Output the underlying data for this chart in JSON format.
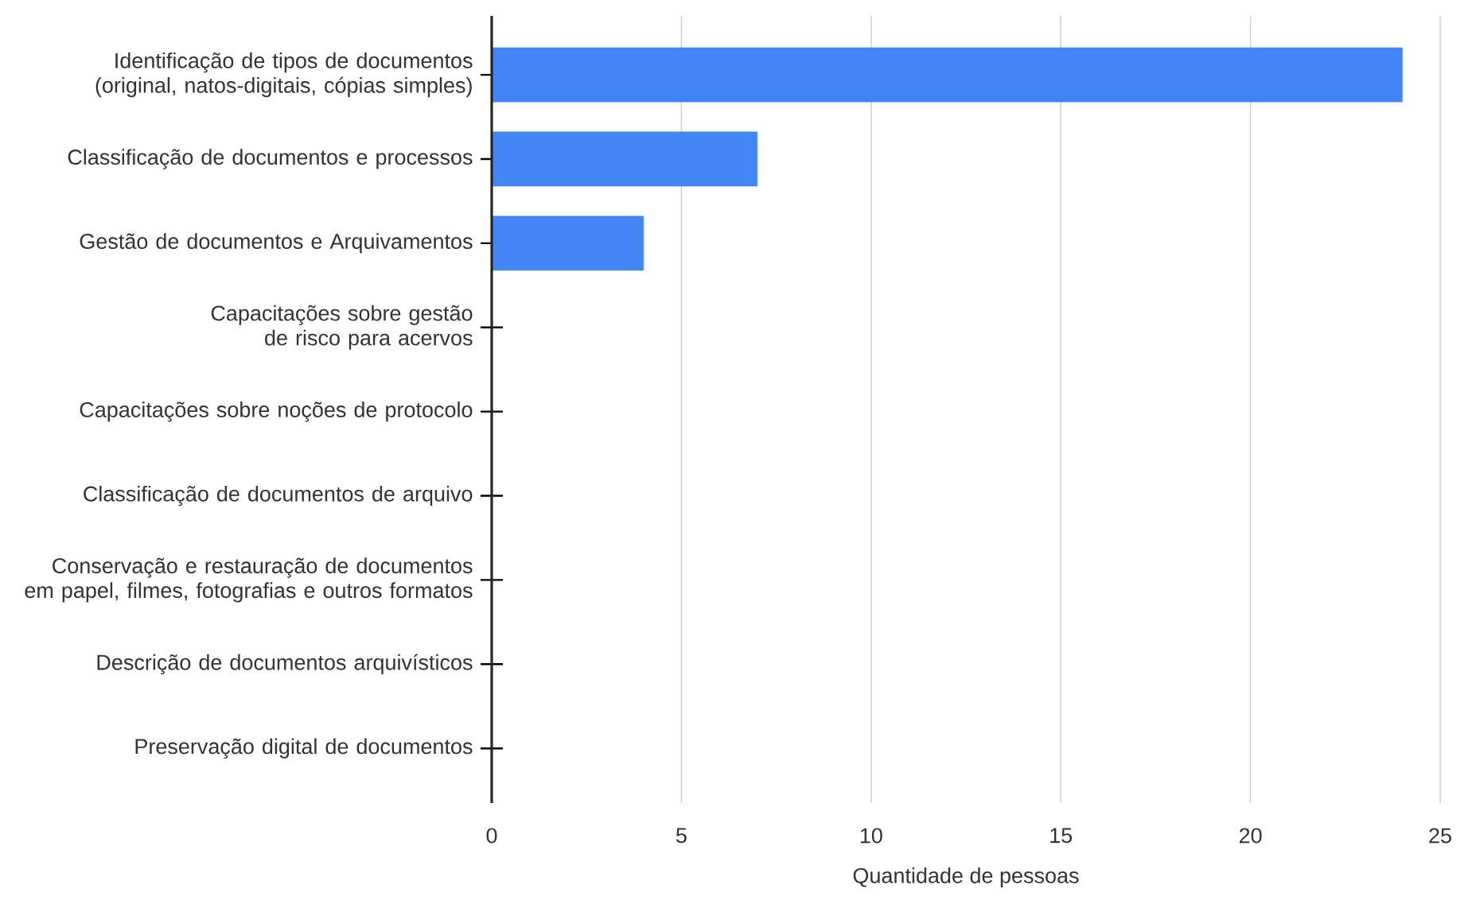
{
  "chart_data": {
    "type": "bar",
    "orientation": "horizontal",
    "categories": [
      "Identificação de tipos de documentos (original, natos-digitais, cópias simples)",
      "Classificação de documentos e processos",
      "Gestão de documentos e Arquivamentos",
      "Capacitações sobre gestão de risco para acervos",
      "Capacitações sobre noções de protocolo",
      "Classificação de documentos de arquivo",
      "Conservação e restauração de documentos em papel, filmes, fotografias e outros formatos",
      "Descrição de documentos arquivísticos",
      "Preservação digital de documentos"
    ],
    "values": [
      24,
      7,
      4,
      0,
      0,
      0,
      0,
      0,
      0
    ],
    "color": "#4285f4",
    "xlabel": "Quantidade de pessoas",
    "xlim": [
      0,
      25
    ],
    "xticks": [
      0,
      5,
      10,
      15,
      20,
      25
    ],
    "grid": "x"
  }
}
